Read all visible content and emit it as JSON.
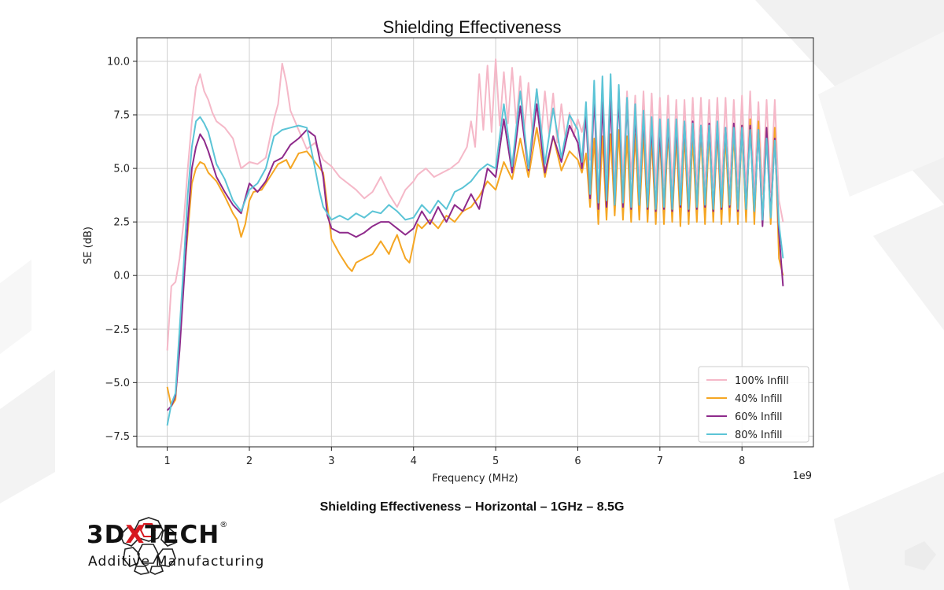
{
  "page": {
    "title": "Shielding Effectiveness",
    "caption": "Shielding Effectiveness – Horizontal – 1GHz – 8.5G"
  },
  "brand": {
    "name_part1": "3D",
    "name_x": "X",
    "name_part2": "TECH",
    "registered": "®",
    "tagline": "Additive Manufacturing",
    "accent_color": "#d71920",
    "icon": "honeycomb-sphere-icon"
  },
  "chart_data": {
    "type": "line",
    "title": "",
    "xlabel": "Frequency (MHz)",
    "ylabel": "SE (dB)",
    "x_offset_label": "1e9",
    "xlim": [
      0.63,
      8.87
    ],
    "ylim": [
      -8.0,
      11.1
    ],
    "xticks": [
      1,
      2,
      3,
      4,
      5,
      6,
      7,
      8
    ],
    "xtick_labels": [
      "1",
      "2",
      "3",
      "4",
      "5",
      "6",
      "7",
      "8"
    ],
    "yticks": [
      -7.5,
      -5.0,
      -2.5,
      0.0,
      2.5,
      5.0,
      7.5,
      10.0
    ],
    "ytick_labels": [
      "−7.5",
      "−5.0",
      "−2.5",
      "0.0",
      "2.5",
      "5.0",
      "7.5",
      "10.0"
    ],
    "grid": true,
    "legend_position": "lower-right",
    "series": [
      {
        "name": "100% Infill",
        "color": "#f5b8c8",
        "x": [
          1.0,
          1.05,
          1.1,
          1.15,
          1.2,
          1.25,
          1.3,
          1.35,
          1.4,
          1.45,
          1.5,
          1.55,
          1.6,
          1.7,
          1.8,
          1.9,
          2.0,
          2.1,
          2.2,
          2.3,
          2.35,
          2.4,
          2.45,
          2.5,
          2.6,
          2.7,
          2.8,
          2.9,
          3.0,
          3.1,
          3.2,
          3.3,
          3.4,
          3.5,
          3.6,
          3.7,
          3.8,
          3.9,
          4.0,
          4.05,
          4.15,
          4.25,
          4.35,
          4.45,
          4.55,
          4.65,
          4.7,
          4.75,
          4.8,
          4.85,
          4.9,
          4.95,
          5.0,
          5.05,
          5.1,
          5.15,
          5.2,
          5.25,
          5.3,
          5.35,
          5.4,
          5.45,
          5.5,
          5.55,
          5.6,
          5.65,
          5.7,
          5.75,
          5.8,
          5.85,
          5.9,
          5.95,
          6.0,
          6.05,
          6.1,
          6.15,
          6.2,
          6.25,
          6.3,
          6.35,
          6.4,
          6.45,
          6.5,
          6.55,
          6.6,
          6.65,
          6.7,
          6.75,
          6.8,
          6.85,
          6.9,
          6.95,
          7.0,
          7.05,
          7.1,
          7.15,
          7.2,
          7.25,
          7.3,
          7.35,
          7.4,
          7.45,
          7.5,
          7.55,
          7.6,
          7.65,
          7.7,
          7.75,
          7.8,
          7.85,
          7.9,
          7.95,
          8.0,
          8.05,
          8.1,
          8.15,
          8.2,
          8.25,
          8.3,
          8.35,
          8.4,
          8.45,
          8.5
        ],
        "y": [
          -3.5,
          -0.5,
          -0.3,
          0.8,
          2.5,
          5.0,
          7.2,
          8.8,
          9.4,
          8.6,
          8.2,
          7.6,
          7.2,
          6.9,
          6.4,
          5.0,
          5.3,
          5.2,
          5.5,
          7.3,
          8.0,
          9.9,
          9.0,
          7.7,
          6.8,
          5.9,
          6.2,
          5.4,
          5.1,
          4.6,
          4.3,
          4.0,
          3.6,
          3.9,
          4.6,
          3.8,
          3.2,
          4.0,
          4.4,
          4.7,
          5.0,
          4.6,
          4.8,
          5.0,
          5.3,
          6.0,
          7.2,
          6.0,
          9.4,
          6.8,
          9.8,
          6.7,
          10.1,
          7.0,
          9.5,
          7.1,
          9.7,
          7.1,
          9.3,
          6.8,
          9.0,
          6.5,
          8.7,
          6.3,
          8.6,
          6.6,
          8.5,
          6.2,
          8.0,
          6.4,
          7.6,
          6.5,
          7.3,
          6.7,
          7.5,
          5.4,
          8.3,
          5.0,
          8.5,
          4.8,
          8.9,
          4.5,
          8.7,
          4.6,
          8.6,
          4.5,
          8.4,
          4.3,
          8.6,
          4.2,
          8.5,
          4.1,
          8.3,
          4.2,
          8.4,
          4.1,
          8.2,
          4.0,
          8.2,
          4.0,
          8.3,
          4.1,
          8.3,
          4.0,
          8.2,
          4.1,
          8.3,
          4.0,
          8.3,
          3.9,
          8.2,
          4.1,
          8.4,
          3.9,
          8.6,
          4.0,
          8.1,
          3.8,
          8.2,
          3.9,
          8.2,
          3.5,
          2.5
        ]
      },
      {
        "name": "40% Infill",
        "color": "#f5a623",
        "x": [
          1.0,
          1.05,
          1.1,
          1.15,
          1.2,
          1.25,
          1.3,
          1.35,
          1.4,
          1.45,
          1.5,
          1.6,
          1.7,
          1.8,
          1.85,
          1.9,
          1.95,
          2.0,
          2.05,
          2.15,
          2.25,
          2.35,
          2.45,
          2.5,
          2.6,
          2.7,
          2.8,
          2.9,
          3.0,
          3.1,
          3.2,
          3.25,
          3.3,
          3.4,
          3.5,
          3.55,
          3.6,
          3.65,
          3.7,
          3.75,
          3.8,
          3.85,
          3.9,
          3.95,
          4.0,
          4.05,
          4.1,
          4.2,
          4.3,
          4.4,
          4.5,
          4.6,
          4.7,
          4.8,
          4.9,
          5.0,
          5.1,
          5.2,
          5.3,
          5.4,
          5.5,
          5.6,
          5.7,
          5.8,
          5.9,
          6.0,
          6.05,
          6.1,
          6.15,
          6.2,
          6.25,
          6.3,
          6.35,
          6.4,
          6.45,
          6.5,
          6.55,
          6.6,
          6.65,
          6.7,
          6.75,
          6.8,
          6.85,
          6.9,
          6.95,
          7.0,
          7.05,
          7.1,
          7.15,
          7.2,
          7.25,
          7.3,
          7.35,
          7.4,
          7.45,
          7.5,
          7.55,
          7.6,
          7.65,
          7.7,
          7.75,
          7.8,
          7.85,
          7.9,
          7.95,
          8.0,
          8.05,
          8.1,
          8.15,
          8.2,
          8.25,
          8.3,
          8.35,
          8.4,
          8.45,
          8.5
        ],
        "y": [
          -5.2,
          -6.1,
          -5.8,
          -3.0,
          -0.2,
          2.0,
          4.3,
          5.0,
          5.3,
          5.2,
          4.8,
          4.4,
          3.7,
          2.9,
          2.6,
          1.8,
          2.4,
          3.5,
          3.9,
          4.0,
          4.6,
          5.2,
          5.4,
          5.0,
          5.7,
          5.8,
          5.3,
          4.8,
          1.7,
          1.0,
          0.4,
          0.2,
          0.6,
          0.8,
          1.0,
          1.3,
          1.6,
          1.3,
          1.0,
          1.5,
          1.9,
          1.3,
          0.8,
          0.6,
          1.5,
          2.4,
          2.2,
          2.6,
          2.2,
          2.8,
          2.5,
          3.0,
          3.2,
          3.7,
          4.4,
          4.0,
          5.3,
          4.5,
          6.4,
          4.6,
          6.9,
          4.6,
          6.5,
          4.9,
          5.8,
          5.4,
          4.8,
          5.7,
          3.2,
          6.4,
          2.4,
          6.5,
          2.6,
          6.6,
          2.8,
          6.8,
          2.6,
          6.5,
          2.5,
          6.6,
          2.6,
          6.7,
          2.5,
          6.4,
          2.4,
          6.6,
          2.4,
          6.8,
          2.5,
          6.5,
          2.3,
          6.6,
          2.4,
          6.4,
          2.5,
          6.7,
          2.4,
          6.7,
          2.5,
          6.8,
          2.4,
          6.5,
          2.5,
          6.7,
          2.4,
          7.0,
          2.5,
          7.3,
          2.4,
          7.2,
          2.5,
          6.9,
          2.4,
          6.9,
          0.8,
          0.0
        ]
      },
      {
        "name": "60% Infill",
        "color": "#8e2a8b",
        "x": [
          1.0,
          1.05,
          1.1,
          1.15,
          1.2,
          1.25,
          1.3,
          1.35,
          1.4,
          1.45,
          1.5,
          1.6,
          1.7,
          1.8,
          1.9,
          2.0,
          2.1,
          2.2,
          2.3,
          2.4,
          2.5,
          2.6,
          2.7,
          2.8,
          2.9,
          2.95,
          3.0,
          3.1,
          3.2,
          3.3,
          3.4,
          3.5,
          3.6,
          3.7,
          3.8,
          3.9,
          4.0,
          4.1,
          4.2,
          4.3,
          4.4,
          4.5,
          4.6,
          4.7,
          4.8,
          4.9,
          5.0,
          5.1,
          5.2,
          5.3,
          5.4,
          5.5,
          5.6,
          5.7,
          5.8,
          5.9,
          6.0,
          6.05,
          6.1,
          6.15,
          6.2,
          6.25,
          6.3,
          6.35,
          6.4,
          6.45,
          6.5,
          6.55,
          6.6,
          6.65,
          6.7,
          6.75,
          6.8,
          6.85,
          6.9,
          6.95,
          7.0,
          7.05,
          7.1,
          7.15,
          7.2,
          7.25,
          7.3,
          7.35,
          7.4,
          7.45,
          7.5,
          7.55,
          7.6,
          7.65,
          7.7,
          7.75,
          7.8,
          7.85,
          7.9,
          7.95,
          8.0,
          8.05,
          8.1,
          8.15,
          8.2,
          8.25,
          8.3,
          8.35,
          8.4,
          8.45,
          8.5
        ],
        "y": [
          -6.3,
          -6.1,
          -5.6,
          -3.5,
          -0.5,
          2.5,
          5.0,
          6.0,
          6.6,
          6.3,
          5.8,
          4.6,
          3.9,
          3.3,
          2.9,
          4.3,
          3.9,
          4.4,
          5.3,
          5.5,
          6.1,
          6.4,
          6.8,
          6.5,
          4.6,
          2.8,
          2.2,
          2.0,
          2.0,
          1.8,
          2.0,
          2.3,
          2.5,
          2.5,
          2.2,
          1.9,
          2.2,
          3.0,
          2.4,
          3.2,
          2.5,
          3.3,
          3.0,
          3.8,
          3.1,
          5.0,
          4.6,
          7.3,
          4.8,
          7.9,
          4.9,
          8.0,
          4.8,
          6.5,
          5.3,
          7.0,
          6.2,
          5.0,
          7.5,
          3.6,
          8.4,
          3.1,
          8.1,
          3.2,
          8.2,
          3.3,
          8.4,
          3.2,
          8.2,
          3.1,
          7.6,
          3.3,
          7.4,
          3.1,
          7.0,
          3.0,
          6.8,
          3.1,
          7.1,
          3.0,
          7.0,
          3.2,
          7.1,
          3.0,
          7.2,
          3.1,
          7.0,
          3.2,
          7.1,
          3.0,
          7.0,
          3.1,
          6.9,
          3.2,
          7.1,
          3.0,
          7.0,
          3.1,
          7.0,
          3.0,
          6.8,
          2.3,
          6.9,
          2.8,
          6.4,
          2.0,
          -0.5
        ]
      },
      {
        "name": "80% Infill",
        "color": "#5bc4d6",
        "x": [
          1.0,
          1.05,
          1.1,
          1.15,
          1.2,
          1.25,
          1.3,
          1.35,
          1.4,
          1.45,
          1.5,
          1.6,
          1.7,
          1.8,
          1.9,
          2.0,
          2.1,
          2.2,
          2.3,
          2.4,
          2.5,
          2.6,
          2.7,
          2.8,
          2.85,
          2.9,
          3.0,
          3.1,
          3.2,
          3.3,
          3.4,
          3.5,
          3.6,
          3.7,
          3.8,
          3.9,
          4.0,
          4.1,
          4.2,
          4.3,
          4.4,
          4.5,
          4.6,
          4.7,
          4.8,
          4.9,
          5.0,
          5.1,
          5.2,
          5.3,
          5.4,
          5.5,
          5.6,
          5.7,
          5.8,
          5.9,
          6.0,
          6.05,
          6.1,
          6.15,
          6.2,
          6.25,
          6.3,
          6.35,
          6.4,
          6.45,
          6.5,
          6.55,
          6.6,
          6.65,
          6.7,
          6.75,
          6.8,
          6.85,
          6.9,
          6.95,
          7.0,
          7.05,
          7.1,
          7.15,
          7.2,
          7.25,
          7.3,
          7.35,
          7.4,
          7.45,
          7.5,
          7.55,
          7.6,
          7.65,
          7.7,
          7.75,
          7.8,
          7.85,
          7.9,
          7.95,
          8.0,
          8.05,
          8.1,
          8.15,
          8.2,
          8.25,
          8.3,
          8.35,
          8.4,
          8.45,
          8.5
        ],
        "y": [
          -7.0,
          -6.0,
          -5.5,
          -2.5,
          0.5,
          3.8,
          6.0,
          7.2,
          7.4,
          7.1,
          6.7,
          5.2,
          4.5,
          3.5,
          3.0,
          4.0,
          4.3,
          5.0,
          6.5,
          6.8,
          6.9,
          7.0,
          6.9,
          5.0,
          4.0,
          3.2,
          2.6,
          2.8,
          2.6,
          2.9,
          2.7,
          3.0,
          2.9,
          3.3,
          3.0,
          2.6,
          2.7,
          3.3,
          2.9,
          3.5,
          3.1,
          3.9,
          4.1,
          4.4,
          4.9,
          5.2,
          5.0,
          8.0,
          5.1,
          8.6,
          5.0,
          8.7,
          5.2,
          7.8,
          5.5,
          7.5,
          6.8,
          5.3,
          8.1,
          3.8,
          9.1,
          3.4,
          9.3,
          3.5,
          9.4,
          3.3,
          8.9,
          3.4,
          8.3,
          3.2,
          8.0,
          3.3,
          7.7,
          3.2,
          7.4,
          3.1,
          7.3,
          3.2,
          7.3,
          3.1,
          7.3,
          3.3,
          7.2,
          3.1,
          7.1,
          3.2,
          7.0,
          3.3,
          7.0,
          3.1,
          7.2,
          3.2,
          6.9,
          3.3,
          6.9,
          3.1,
          6.9,
          3.1,
          6.8,
          3.0,
          6.8,
          2.6,
          6.4,
          2.7,
          6.3,
          2.4,
          0.8
        ]
      }
    ]
  }
}
